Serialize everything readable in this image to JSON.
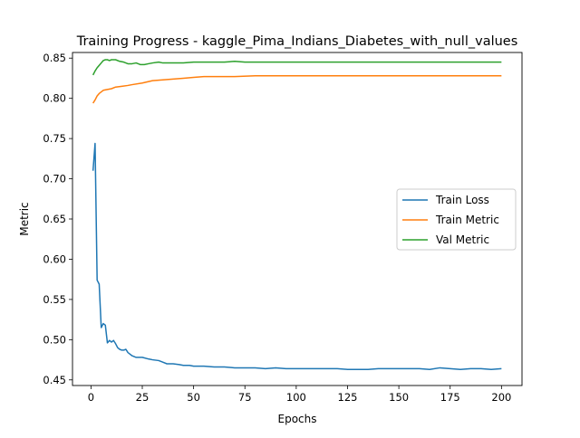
{
  "chart_data": {
    "type": "line",
    "title": "Training Progress - kaggle_Pima_Indians_Diabetes_with_null_values",
    "xlabel": "Epochs",
    "ylabel": "Metric",
    "xlim": [
      -9,
      210
    ],
    "ylim": [
      0.443,
      0.857
    ],
    "x_ticks": [
      0,
      25,
      50,
      75,
      100,
      125,
      150,
      175,
      200
    ],
    "y_ticks": [
      0.45,
      0.5,
      0.55,
      0.6,
      0.65,
      0.7,
      0.75,
      0.8,
      0.85
    ],
    "y_tick_labels": [
      "0.45",
      "0.50",
      "0.55",
      "0.60",
      "0.65",
      "0.70",
      "0.75",
      "0.80",
      "0.85"
    ],
    "grid": false,
    "legend_position": "center-right",
    "series": [
      {
        "name": "Train Loss",
        "color": "#1f77b4",
        "points": [
          [
            1,
            0.71
          ],
          [
            2,
            0.744
          ],
          [
            3,
            0.574
          ],
          [
            4,
            0.569
          ],
          [
            5,
            0.515
          ],
          [
            6,
            0.52
          ],
          [
            7,
            0.518
          ],
          [
            8,
            0.496
          ],
          [
            9,
            0.499
          ],
          [
            10,
            0.497
          ],
          [
            11,
            0.499
          ],
          [
            12,
            0.495
          ],
          [
            13,
            0.49
          ],
          [
            14,
            0.488
          ],
          [
            15,
            0.487
          ],
          [
            16,
            0.487
          ],
          [
            17,
            0.488
          ],
          [
            18,
            0.484
          ],
          [
            19,
            0.482
          ],
          [
            20,
            0.48
          ],
          [
            22,
            0.478
          ],
          [
            25,
            0.478
          ],
          [
            28,
            0.476
          ],
          [
            30,
            0.475
          ],
          [
            33,
            0.474
          ],
          [
            35,
            0.472
          ],
          [
            37,
            0.47
          ],
          [
            40,
            0.47
          ],
          [
            43,
            0.469
          ],
          [
            45,
            0.468
          ],
          [
            48,
            0.468
          ],
          [
            50,
            0.467
          ],
          [
            55,
            0.467
          ],
          [
            60,
            0.466
          ],
          [
            65,
            0.466
          ],
          [
            70,
            0.465
          ],
          [
            75,
            0.465
          ],
          [
            80,
            0.465
          ],
          [
            85,
            0.464
          ],
          [
            90,
            0.465
          ],
          [
            95,
            0.464
          ],
          [
            100,
            0.464
          ],
          [
            105,
            0.464
          ],
          [
            110,
            0.464
          ],
          [
            115,
            0.464
          ],
          [
            120,
            0.464
          ],
          [
            125,
            0.463
          ],
          [
            130,
            0.463
          ],
          [
            135,
            0.463
          ],
          [
            140,
            0.464
          ],
          [
            145,
            0.464
          ],
          [
            150,
            0.464
          ],
          [
            155,
            0.464
          ],
          [
            160,
            0.464
          ],
          [
            165,
            0.463
          ],
          [
            170,
            0.465
          ],
          [
            175,
            0.464
          ],
          [
            180,
            0.463
          ],
          [
            185,
            0.464
          ],
          [
            190,
            0.464
          ],
          [
            195,
            0.463
          ],
          [
            200,
            0.464
          ]
        ]
      },
      {
        "name": "Train Metric",
        "color": "#ff7f0e",
        "points": [
          [
            1,
            0.794
          ],
          [
            2,
            0.798
          ],
          [
            3,
            0.803
          ],
          [
            4,
            0.806
          ],
          [
            5,
            0.808
          ],
          [
            6,
            0.81
          ],
          [
            8,
            0.811
          ],
          [
            10,
            0.812
          ],
          [
            12,
            0.814
          ],
          [
            15,
            0.815
          ],
          [
            18,
            0.816
          ],
          [
            20,
            0.817
          ],
          [
            25,
            0.819
          ],
          [
            30,
            0.822
          ],
          [
            35,
            0.823
          ],
          [
            40,
            0.824
          ],
          [
            45,
            0.825
          ],
          [
            50,
            0.826
          ],
          [
            55,
            0.827
          ],
          [
            60,
            0.827
          ],
          [
            70,
            0.827
          ],
          [
            80,
            0.828
          ],
          [
            90,
            0.828
          ],
          [
            100,
            0.828
          ],
          [
            120,
            0.828
          ],
          [
            140,
            0.828
          ],
          [
            160,
            0.828
          ],
          [
            180,
            0.828
          ],
          [
            200,
            0.828
          ]
        ]
      },
      {
        "name": "Val Metric",
        "color": "#2ca02c",
        "points": [
          [
            1,
            0.829
          ],
          [
            2,
            0.834
          ],
          [
            3,
            0.838
          ],
          [
            4,
            0.841
          ],
          [
            5,
            0.844
          ],
          [
            6,
            0.847
          ],
          [
            7,
            0.848
          ],
          [
            8,
            0.848
          ],
          [
            9,
            0.847
          ],
          [
            10,
            0.848
          ],
          [
            12,
            0.848
          ],
          [
            14,
            0.846
          ],
          [
            16,
            0.845
          ],
          [
            18,
            0.843
          ],
          [
            20,
            0.843
          ],
          [
            22,
            0.844
          ],
          [
            24,
            0.842
          ],
          [
            26,
            0.842
          ],
          [
            28,
            0.843
          ],
          [
            30,
            0.844
          ],
          [
            33,
            0.845
          ],
          [
            35,
            0.844
          ],
          [
            40,
            0.844
          ],
          [
            45,
            0.844
          ],
          [
            50,
            0.845
          ],
          [
            55,
            0.845
          ],
          [
            60,
            0.845
          ],
          [
            65,
            0.845
          ],
          [
            70,
            0.846
          ],
          [
            75,
            0.845
          ],
          [
            80,
            0.845
          ],
          [
            85,
            0.845
          ],
          [
            90,
            0.845
          ],
          [
            100,
            0.845
          ],
          [
            110,
            0.845
          ],
          [
            120,
            0.845
          ],
          [
            130,
            0.845
          ],
          [
            140,
            0.845
          ],
          [
            150,
            0.845
          ],
          [
            160,
            0.845
          ],
          [
            170,
            0.845
          ],
          [
            180,
            0.845
          ],
          [
            190,
            0.845
          ],
          [
            200,
            0.845
          ]
        ]
      }
    ]
  }
}
